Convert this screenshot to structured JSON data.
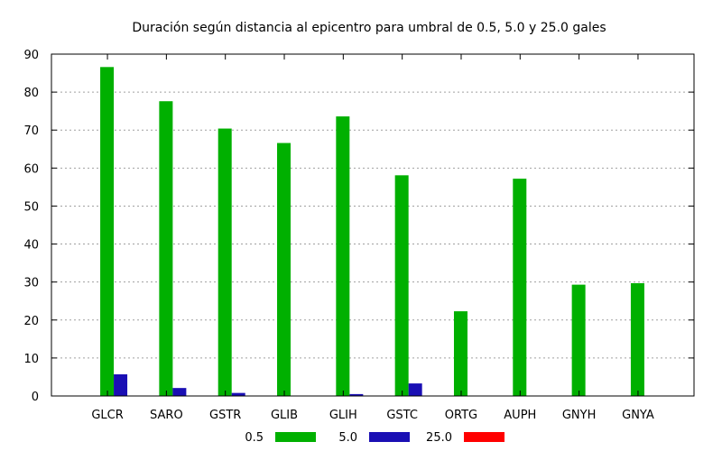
{
  "chart_data": {
    "type": "bar",
    "title": "Duración según distancia al epicentro para umbral de 0.5, 5.0 y 25.0 gales",
    "xlabel": "",
    "ylabel": "",
    "ylim": [
      0,
      90
    ],
    "yticks": [
      0,
      10,
      20,
      30,
      40,
      50,
      60,
      70,
      80,
      90
    ],
    "grid": true,
    "legend_position": "bottom",
    "categories": [
      "GLCR",
      "SARO",
      "GSTR",
      "GLIB",
      "GLIH",
      "GSTC",
      "ORTG",
      "AUPH",
      "GNYH",
      "GNYA"
    ],
    "series": [
      {
        "name": "0.5",
        "color": "#00b000",
        "values": [
          86.6,
          77.6,
          70.4,
          66.6,
          73.6,
          58.1,
          22.3,
          57.2,
          29.3,
          29.7
        ]
      },
      {
        "name": "5.0",
        "color": "#1a0fb4",
        "values": [
          5.7,
          2.1,
          0.8,
          0,
          0.5,
          3.3,
          0,
          0,
          0,
          0
        ]
      },
      {
        "name": "25.0",
        "color": "#ff0000",
        "values": [
          0,
          0,
          0,
          0,
          0,
          0,
          0,
          0,
          0,
          0
        ]
      }
    ]
  }
}
